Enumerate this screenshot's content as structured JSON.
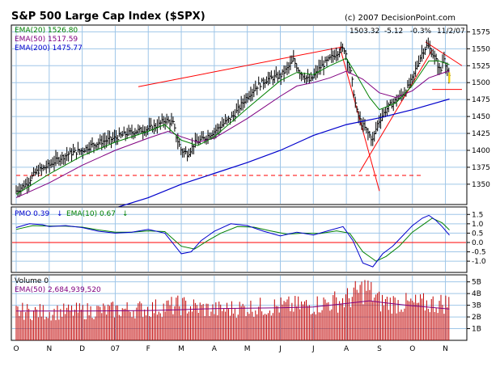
{
  "chart_data": {
    "type": "line",
    "source": "(c) 2007 DecisionPoint.com",
    "title": "S&P 500 Large Cap Index ($SPX)",
    "summary": {
      "last": "1503.32",
      "change": "-5.12",
      "change_pct": "-0.3%",
      "date": "11/2/07"
    },
    "x_labels": [
      "O",
      "N",
      "D",
      "07",
      "F",
      "M",
      "A",
      "M",
      "J",
      "J",
      "A",
      "S",
      "O",
      "N"
    ],
    "price_panel": {
      "ylim": [
        1320,
        1585
      ],
      "ticks": [
        1575,
        1550,
        1525,
        1500,
        1475,
        1450,
        1425,
        1400,
        1375,
        1350
      ],
      "tick_labels": [
        "1575",
        "1550",
        "1525",
        "1500",
        "1475",
        "1450",
        "1425",
        "1400",
        "1375",
        "1350"
      ],
      "series": [
        {
          "name": "price",
          "type": "hlc",
          "color": "#000000"
        },
        {
          "name": "EMA(20)",
          "label": "EMA(20) 1526.80",
          "color": "#008000"
        },
        {
          "name": "EMA(50)",
          "label": "EMA(50) 1517.59",
          "color": "#800080"
        },
        {
          "name": "EMA(200)",
          "label": "EMA(200) 1475.77",
          "color": "#0000cc"
        }
      ],
      "close_points": [
        [
          0,
          1340
        ],
        [
          0.3,
          1350
        ],
        [
          0.6,
          1368
        ],
        [
          1,
          1378
        ],
        [
          1.3,
          1388
        ],
        [
          1.6,
          1395
        ],
        [
          2,
          1400
        ],
        [
          2.3,
          1408
        ],
        [
          2.6,
          1413
        ],
        [
          3,
          1418
        ],
        [
          3.3,
          1424
        ],
        [
          3.6,
          1428
        ],
        [
          4,
          1432
        ],
        [
          4.3,
          1437
        ],
        [
          4.5,
          1445
        ],
        [
          4.75,
          1440
        ],
        [
          4.85,
          1420
        ],
        [
          5,
          1400
        ],
        [
          5.2,
          1395
        ],
        [
          5.4,
          1410
        ],
        [
          5.7,
          1418
        ],
        [
          6,
          1428
        ],
        [
          6.3,
          1440
        ],
        [
          6.6,
          1452
        ],
        [
          7,
          1480
        ],
        [
          7.3,
          1495
        ],
        [
          7.6,
          1505
        ],
        [
          8,
          1510
        ],
        [
          8.2,
          1520
        ],
        [
          8.4,
          1533
        ],
        [
          8.6,
          1515
        ],
        [
          8.9,
          1502
        ],
        [
          9.2,
          1522
        ],
        [
          9.5,
          1535
        ],
        [
          9.8,
          1548
        ],
        [
          9.95,
          1550
        ],
        [
          10.15,
          1510
        ],
        [
          10.3,
          1460
        ],
        [
          10.45,
          1440
        ],
        [
          10.6,
          1430
        ],
        [
          10.8,
          1415
        ],
        [
          10.95,
          1440
        ],
        [
          11.2,
          1460
        ],
        [
          11.4,
          1470
        ],
        [
          11.6,
          1478
        ],
        [
          11.8,
          1488
        ],
        [
          12,
          1505
        ],
        [
          12.1,
          1520
        ],
        [
          12.3,
          1545
        ],
        [
          12.45,
          1555
        ],
        [
          12.55,
          1548
        ],
        [
          12.7,
          1535
        ],
        [
          12.85,
          1515
        ],
        [
          12.95,
          1540
        ],
        [
          13.05,
          1520
        ],
        [
          13.12,
          1503.32
        ]
      ],
      "ema20_points": [
        [
          0,
          1335
        ],
        [
          1,
          1365
        ],
        [
          2,
          1392
        ],
        [
          3,
          1412
        ],
        [
          4,
          1428
        ],
        [
          4.5,
          1438
        ],
        [
          5,
          1415
        ],
        [
          5.5,
          1407
        ],
        [
          6,
          1420
        ],
        [
          7,
          1462
        ],
        [
          8,
          1503
        ],
        [
          8.5,
          1515
        ],
        [
          9,
          1512
        ],
        [
          9.5,
          1525
        ],
        [
          10,
          1536
        ],
        [
          10.3,
          1512
        ],
        [
          10.7,
          1478
        ],
        [
          11,
          1460
        ],
        [
          11.5,
          1470
        ],
        [
          12,
          1496
        ],
        [
          12.5,
          1532
        ],
        [
          12.8,
          1532
        ],
        [
          13.12,
          1526.8
        ]
      ],
      "ema50_points": [
        [
          0,
          1330
        ],
        [
          1,
          1352
        ],
        [
          2,
          1378
        ],
        [
          3,
          1400
        ],
        [
          4,
          1418
        ],
        [
          4.6,
          1428
        ],
        [
          5,
          1420
        ],
        [
          5.5,
          1412
        ],
        [
          6,
          1418
        ],
        [
          7,
          1447
        ],
        [
          8,
          1480
        ],
        [
          8.5,
          1495
        ],
        [
          9,
          1500
        ],
        [
          9.5,
          1507
        ],
        [
          10,
          1517
        ],
        [
          10.5,
          1505
        ],
        [
          11,
          1485
        ],
        [
          11.5,
          1478
        ],
        [
          12,
          1488
        ],
        [
          12.5,
          1507
        ],
        [
          13.12,
          1517.59
        ]
      ],
      "ema200_points": [
        [
          0,
          1278
        ],
        [
          2,
          1300
        ],
        [
          4,
          1330
        ],
        [
          5,
          1350
        ],
        [
          6,
          1366
        ],
        [
          7,
          1382
        ],
        [
          8,
          1400
        ],
        [
          9,
          1422
        ],
        [
          10,
          1438
        ],
        [
          11,
          1448
        ],
        [
          12,
          1460
        ],
        [
          13.12,
          1475.77
        ]
      ],
      "annotations": [
        {
          "type": "trendline",
          "color": "#ff0000",
          "points": [
            [
              3.7,
              1494
            ],
            [
              9.9,
              1553
            ]
          ]
        },
        {
          "type": "trendline",
          "color": "#ff0000",
          "points": [
            [
              12.4,
              1560
            ],
            [
              13.5,
              1525
            ]
          ]
        },
        {
          "type": "trendline",
          "color": "#ff0000",
          "points": [
            [
              9.8,
              1553
            ],
            [
              11,
              1340
            ]
          ]
        },
        {
          "type": "trendline",
          "color": "#ff0000",
          "points": [
            [
              10.4,
              1368
            ],
            [
              12.6,
              1548
            ]
          ]
        },
        {
          "type": "hline_dashed",
          "color": "#ff0000",
          "y": 1363,
          "x": [
            0,
            12.3
          ]
        },
        {
          "type": "hline",
          "color": "#ff0000",
          "y": 1490,
          "x": [
            12.6,
            13.5
          ]
        }
      ]
    },
    "pmo_panel": {
      "label_pmo": "PMO 0.39",
      "label_ema": "EMA(10) 0.67",
      "arrow": "↓",
      "ylim": [
        -1.6,
        1.9
      ],
      "ticks": [
        1.5,
        1.0,
        0.5,
        0.0,
        -0.5,
        -1.0
      ],
      "tick_labels": [
        "1.5",
        "1.0",
        "0.5",
        "0.0",
        "-0.5",
        "-1.0"
      ],
      "zero_line_color": "#ff0000",
      "pmo_points": [
        [
          0,
          0.8
        ],
        [
          0.4,
          1.0
        ],
        [
          0.8,
          0.95
        ],
        [
          1,
          0.85
        ],
        [
          1.5,
          0.9
        ],
        [
          2,
          0.8
        ],
        [
          2.5,
          0.6
        ],
        [
          3,
          0.5
        ],
        [
          3.5,
          0.55
        ],
        [
          4,
          0.7
        ],
        [
          4.5,
          0.5
        ],
        [
          5,
          -0.6
        ],
        [
          5.3,
          -0.5
        ],
        [
          5.6,
          0.1
        ],
        [
          6,
          0.6
        ],
        [
          6.5,
          1.0
        ],
        [
          7,
          0.9
        ],
        [
          7.5,
          0.6
        ],
        [
          8,
          0.35
        ],
        [
          8.5,
          0.55
        ],
        [
          9,
          0.4
        ],
        [
          9.5,
          0.65
        ],
        [
          9.9,
          0.85
        ],
        [
          10.2,
          0.1
        ],
        [
          10.5,
          -1.1
        ],
        [
          10.8,
          -1.3
        ],
        [
          11.1,
          -0.6
        ],
        [
          11.4,
          -0.2
        ],
        [
          11.7,
          0.35
        ],
        [
          12,
          0.9
        ],
        [
          12.3,
          1.3
        ],
        [
          12.5,
          1.45
        ],
        [
          12.7,
          1.2
        ],
        [
          12.9,
          0.85
        ],
        [
          13.12,
          0.39
        ]
      ],
      "signal_points": [
        [
          0,
          0.7
        ],
        [
          0.5,
          0.9
        ],
        [
          1,
          0.88
        ],
        [
          1.5,
          0.87
        ],
        [
          2,
          0.82
        ],
        [
          2.5,
          0.67
        ],
        [
          3,
          0.55
        ],
        [
          3.5,
          0.55
        ],
        [
          4,
          0.62
        ],
        [
          4.5,
          0.58
        ],
        [
          5,
          -0.2
        ],
        [
          5.4,
          -0.35
        ],
        [
          5.8,
          0.1
        ],
        [
          6.2,
          0.5
        ],
        [
          6.7,
          0.85
        ],
        [
          7.2,
          0.82
        ],
        [
          7.7,
          0.62
        ],
        [
          8.2,
          0.45
        ],
        [
          8.7,
          0.5
        ],
        [
          9.2,
          0.48
        ],
        [
          9.7,
          0.62
        ],
        [
          10.1,
          0.5
        ],
        [
          10.5,
          -0.5
        ],
        [
          10.9,
          -1.0
        ],
        [
          11.2,
          -0.75
        ],
        [
          11.6,
          -0.2
        ],
        [
          12,
          0.55
        ],
        [
          12.4,
          1.05
        ],
        [
          12.6,
          1.3
        ],
        [
          12.9,
          1.05
        ],
        [
          13.12,
          0.67
        ]
      ]
    },
    "volume_panel": {
      "label_volume": "Volume 0",
      "label_ema": "EMA(50) 2,684,939,520",
      "ylim": [
        0,
        5.6
      ],
      "ticks": [
        5,
        4,
        3,
        2,
        1
      ],
      "tick_labels": [
        "5B",
        "4B",
        "3B",
        "2B",
        "1B"
      ],
      "ema_points": [
        [
          0,
          2.5
        ],
        [
          2,
          2.5
        ],
        [
          4,
          2.55
        ],
        [
          5,
          2.62
        ],
        [
          6,
          2.72
        ],
        [
          7,
          2.75
        ],
        [
          8,
          2.78
        ],
        [
          9,
          2.85
        ],
        [
          10,
          3.15
        ],
        [
          10.7,
          3.38
        ],
        [
          11.2,
          3.2
        ],
        [
          12,
          2.95
        ],
        [
          13.12,
          2.68
        ]
      ],
      "bar_profile": [
        [
          0,
          2.5
        ],
        [
          1,
          2.4
        ],
        [
          2,
          2.5
        ],
        [
          3,
          2.6
        ],
        [
          4,
          2.7
        ],
        [
          5,
          3.0
        ],
        [
          6,
          2.6
        ],
        [
          7,
          2.8
        ],
        [
          8,
          2.9
        ],
        [
          9,
          3.0
        ],
        [
          10,
          3.5
        ],
        [
          10.6,
          4.5
        ],
        [
          11,
          3.3
        ],
        [
          12,
          3.1
        ],
        [
          13.12,
          3.2
        ]
      ]
    }
  }
}
